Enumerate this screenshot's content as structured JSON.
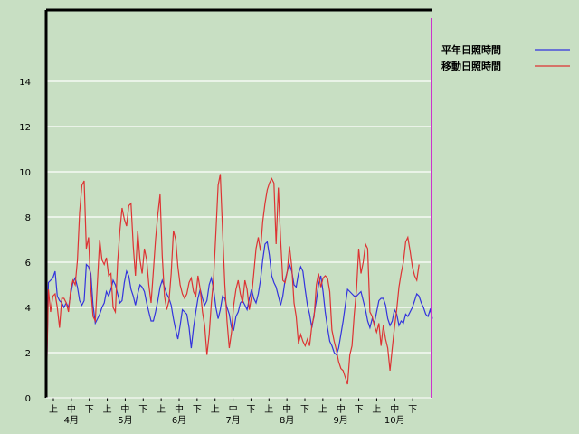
{
  "chart_data": {
    "type": "line",
    "ylim": [
      0,
      17
    ],
    "y_ticks": [
      0,
      2,
      4,
      6,
      8,
      10,
      12,
      14
    ],
    "grid": "horizontal",
    "legend_position": "top-right",
    "x_decade_labels": [
      "上",
      "中",
      "下"
    ],
    "x_month_labels": [
      "4月",
      "5月",
      "6月",
      "7月",
      "8月",
      "9月",
      "10月"
    ],
    "colors": {
      "background": "#c8dfc3",
      "grid": "#ffffff",
      "axis": "#000000",
      "marker": "#cc33cc"
    },
    "series": [
      {
        "name": "平年日照時間",
        "color": "#3333dd",
        "values": [
          0,
          5.1,
          5.2,
          5.3,
          5.6,
          4.5,
          4.3,
          4.2,
          4.0,
          4.2,
          4.0,
          4.6,
          5.1,
          5.3,
          4.9,
          4.3,
          4.1,
          4.3,
          5.9,
          5.8,
          5.5,
          4.1,
          3.3,
          3.5,
          3.7,
          4.0,
          4.2,
          4.7,
          4.5,
          4.8,
          5.2,
          5.0,
          4.6,
          4.2,
          4.3,
          5.1,
          5.6,
          5.4,
          4.8,
          4.5,
          4.1,
          4.6,
          5.0,
          4.9,
          4.7,
          4.2,
          3.8,
          3.4,
          3.4,
          3.8,
          4.3,
          4.9,
          5.2,
          4.9,
          4.6,
          4.4,
          4.1,
          3.5,
          3.0,
          2.6,
          3.2,
          3.9,
          3.8,
          3.7,
          3.1,
          2.2,
          3.1,
          3.8,
          4.4,
          4.8,
          4.4,
          4.1,
          4.3,
          5.0,
          5.3,
          4.8,
          4.0,
          3.5,
          3.9,
          4.5,
          4.4,
          4.0,
          3.7,
          3.1,
          3.0,
          3.6,
          3.8,
          4.2,
          4.3,
          4.1,
          3.9,
          4.4,
          4.8,
          4.4,
          4.2,
          4.6,
          5.2,
          6.1,
          6.8,
          6.9,
          6.3,
          5.4,
          5.1,
          4.9,
          4.5,
          4.1,
          4.5,
          5.2,
          5.6,
          5.9,
          5.6,
          5.0,
          4.9,
          5.5,
          5.8,
          5.6,
          4.8,
          4.1,
          3.7,
          3.1,
          3.7,
          4.3,
          5.0,
          5.4,
          4.7,
          3.8,
          3.1,
          2.5,
          2.3,
          2.0,
          1.9,
          2.2,
          2.8,
          3.4,
          4.1,
          4.8,
          4.7,
          4.6,
          4.5,
          4.5,
          4.6,
          4.7,
          4.3,
          3.9,
          3.4,
          3.1,
          3.5,
          3.3,
          3.8,
          4.3,
          4.4,
          4.4,
          4.1,
          3.5,
          3.2,
          3.4,
          3.9,
          3.7,
          3.2,
          3.4,
          3.3,
          3.7,
          3.6,
          3.8,
          4.0,
          4.3,
          4.6,
          4.5,
          4.2,
          4.0,
          3.7,
          3.6,
          3.9,
          3.5
        ]
      },
      {
        "name": "移動日照時間",
        "color": "#dd3333",
        "values": [
          0,
          4.8,
          3.8,
          4.5,
          4.6,
          4.0,
          3.1,
          4.4,
          4.4,
          4.2,
          3.8,
          4.8,
          5.2,
          5.0,
          6.1,
          8.2,
          9.4,
          9.6,
          6.6,
          7.1,
          4.8,
          3.6,
          3.4,
          5.2,
          7.0,
          6.1,
          5.9,
          6.2,
          5.4,
          5.5,
          4.0,
          3.8,
          6.0,
          7.4,
          8.4,
          7.9,
          7.6,
          8.5,
          8.6,
          6.7,
          5.4,
          7.4,
          6.1,
          5.5,
          6.6,
          6.1,
          5.0,
          4.2,
          5.6,
          7.0,
          8.1,
          9.0,
          6.3,
          4.5,
          3.9,
          4.3,
          5.5,
          7.4,
          7.0,
          5.8,
          5.0,
          4.6,
          4.4,
          4.6,
          5.1,
          5.3,
          4.7,
          4.5,
          5.4,
          4.8,
          3.8,
          3.2,
          1.9,
          2.8,
          4.2,
          5.3,
          7.3,
          9.4,
          9.9,
          7.4,
          5.0,
          3.4,
          2.2,
          2.9,
          4.1,
          4.8,
          5.2,
          4.6,
          4.2,
          5.2,
          4.8,
          3.9,
          4.5,
          5.5,
          6.6,
          7.1,
          6.5,
          7.8,
          8.6,
          9.2,
          9.5,
          9.7,
          9.5,
          6.8,
          9.3,
          7.0,
          5.2,
          5.1,
          5.6,
          6.7,
          5.8,
          4.2,
          3.6,
          2.4,
          2.8,
          2.5,
          2.3,
          2.6,
          2.3,
          3.2,
          3.6,
          5.0,
          5.5,
          4.9,
          5.3,
          5.4,
          5.3,
          4.7,
          3.0,
          2.5,
          2.1,
          1.6,
          1.3,
          1.2,
          0.9,
          0.6,
          1.9,
          2.3,
          3.7,
          4.8,
          6.6,
          5.5,
          6.0,
          6.8,
          6.6,
          3.8,
          3.6,
          3.2,
          2.9,
          3.3,
          2.3,
          3.2,
          2.6,
          2.2,
          1.2,
          2.2,
          3.1,
          3.9,
          4.9,
          5.5,
          6.0,
          6.9,
          7.1,
          6.5,
          5.8,
          5.4,
          5.2,
          5.9
        ]
      }
    ]
  }
}
